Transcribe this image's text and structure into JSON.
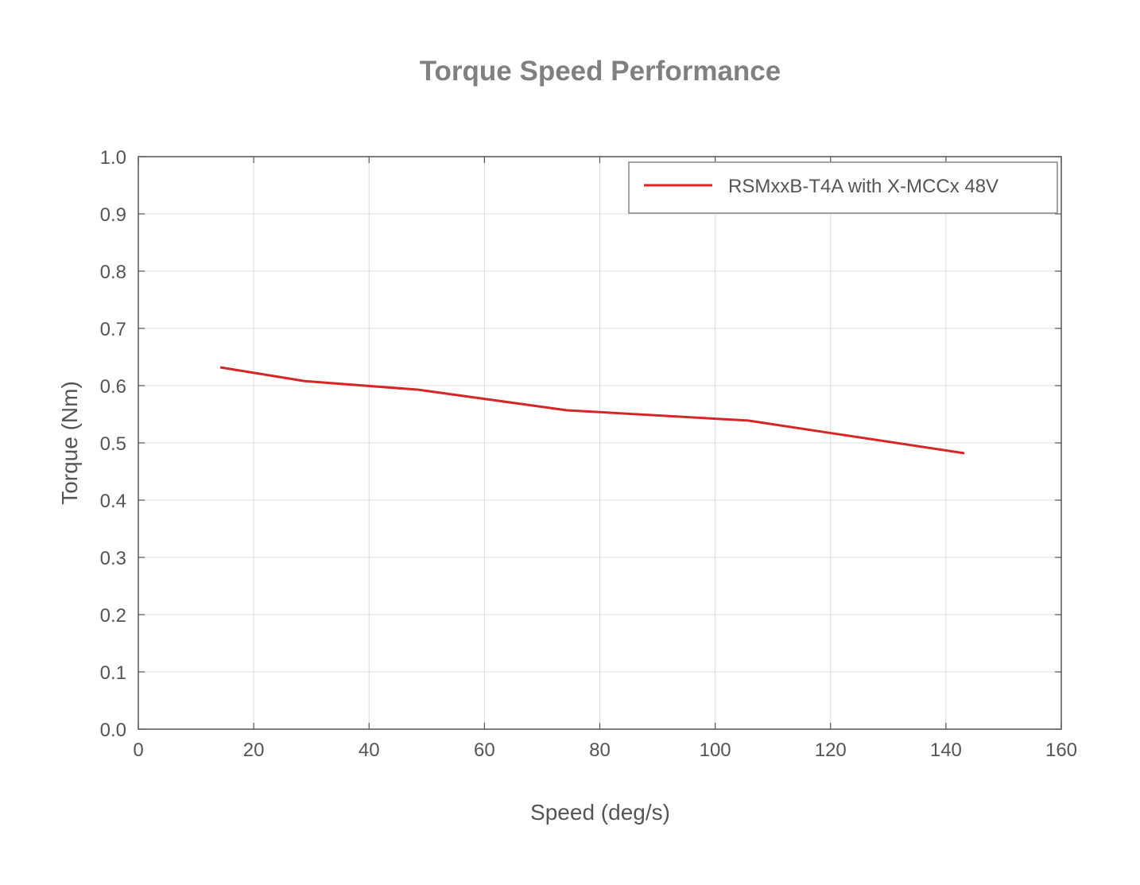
{
  "chart_data": {
    "type": "line",
    "title": "Torque Speed Performance",
    "xlabel": "Speed (deg/s)",
    "ylabel": "Torque (Nm)",
    "xlim": [
      0,
      160
    ],
    "ylim": [
      0,
      1.0
    ],
    "xticks": [
      "0",
      "20",
      "40",
      "60",
      "80",
      "100",
      "120",
      "140",
      "160"
    ],
    "yticks": [
      "0.0",
      "0.1",
      "0.2",
      "0.3",
      "0.4",
      "0.5",
      "0.6",
      "0.7",
      "0.8",
      "0.9",
      "1.0"
    ],
    "grid": true,
    "legend_position": "top-right",
    "series": [
      {
        "name": "RSMxxB-T4A with X-MCCx 48V",
        "color": "#d62728",
        "x": [
          14.2,
          28.8,
          48.4,
          74.3,
          105.7,
          143.2
        ],
        "y": [
          0.632,
          0.608,
          0.593,
          0.557,
          0.539,
          0.482
        ]
      }
    ]
  }
}
